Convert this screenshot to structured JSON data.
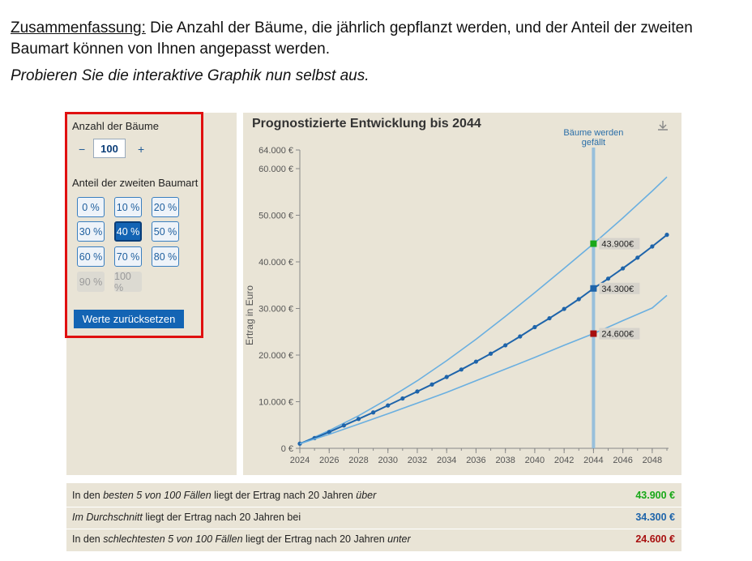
{
  "intro": {
    "heading": "Zusammenfassung:",
    "text": " Die Anzahl der Bäume, die jährlich gepflanzt werden, und der Anteil der zweiten Baumart können von Ihnen angepasst werden.",
    "line2": "Probieren Sie die interaktive Graphik nun selbst aus."
  },
  "controls": {
    "trees_label": "Anzahl der Bäume",
    "minus": "−",
    "plus": "+",
    "trees_value": "100",
    "share_label": "Anteil der zweiten Baumart",
    "share_options": [
      {
        "label": "0 %",
        "state": "normal"
      },
      {
        "label": "10 %",
        "state": "normal"
      },
      {
        "label": "20 %",
        "state": "normal"
      },
      {
        "label": "30 %",
        "state": "normal"
      },
      {
        "label": "40 %",
        "state": "active"
      },
      {
        "label": "50 %",
        "state": "normal"
      },
      {
        "label": "60 %",
        "state": "normal"
      },
      {
        "label": "70 %",
        "state": "normal"
      },
      {
        "label": "80 %",
        "state": "normal"
      },
      {
        "label": "90 %",
        "state": "disabled"
      },
      {
        "label": "100 %",
        "state": "disabled"
      }
    ],
    "reset_label": "Werte zurücksetzen"
  },
  "chart_data": {
    "type": "line",
    "title": "Prognostizierte Entwicklung bis 2044",
    "xlabel": "",
    "ylabel": "Ertrag in Euro",
    "xlim": [
      2024,
      2049
    ],
    "ylim": [
      0,
      64000
    ],
    "xticks": [
      2024,
      2026,
      2028,
      2030,
      2032,
      2034,
      2036,
      2038,
      2040,
      2042,
      2044,
      2046,
      2048
    ],
    "yticks": [
      0,
      10000,
      20000,
      30000,
      40000,
      50000,
      60000,
      64000
    ],
    "ytick_labels": [
      "0 €",
      "10.000 €",
      "20.000 €",
      "30.000 €",
      "40.000 €",
      "50.000 €",
      "60.000 €",
      "64.000 €"
    ],
    "cut_year": 2044,
    "cut_label_line1": "Bäume werden",
    "cut_label_line2": "gefällt",
    "series": [
      {
        "key": "best",
        "color": "#6aafe0",
        "x": [
          2024,
          2026,
          2028,
          2030,
          2032,
          2034,
          2036,
          2038,
          2040,
          2042,
          2044,
          2046,
          2048,
          2049
        ],
        "y": [
          1000,
          3800,
          7000,
          10600,
          14500,
          18800,
          23400,
          28300,
          33400,
          38600,
          43900,
          49400,
          55200,
          58200
        ]
      },
      {
        "key": "mean",
        "color": "#1e64aa",
        "x": [
          2024,
          2025,
          2026,
          2027,
          2028,
          2029,
          2030,
          2031,
          2032,
          2033,
          2034,
          2035,
          2036,
          2037,
          2038,
          2039,
          2040,
          2041,
          2042,
          2043,
          2044,
          2045,
          2046,
          2047,
          2048,
          2049
        ],
        "y": [
          1000,
          2200,
          3500,
          4900,
          6300,
          7700,
          9200,
          10700,
          12200,
          13700,
          15300,
          16900,
          18600,
          20300,
          22100,
          24000,
          26000,
          27900,
          29900,
          32000,
          34300,
          36400,
          38600,
          40900,
          43300,
          45800
        ]
      },
      {
        "key": "worst",
        "color": "#6aafe0",
        "x": [
          2024,
          2026,
          2028,
          2030,
          2032,
          2034,
          2036,
          2038,
          2040,
          2042,
          2044,
          2046,
          2048,
          2049
        ],
        "y": [
          1000,
          3000,
          5200,
          7400,
          9700,
          12000,
          14500,
          17000,
          19500,
          22100,
          24600,
          27400,
          30100,
          32800
        ]
      }
    ],
    "markers": [
      {
        "y": 43900,
        "label": "43.900€",
        "color": "#1aa81a"
      },
      {
        "y": 34300,
        "label": "34.300€",
        "color": "#1e64aa"
      },
      {
        "y": 24600,
        "label": "24.600€",
        "color": "#a80f0f"
      }
    ]
  },
  "summary": [
    {
      "parts": [
        {
          "t": "In den ",
          "i": false
        },
        {
          "t": "besten 5 von 100 Fällen",
          "i": true
        },
        {
          "t": " liegt der Ertrag nach 20 Jahren ",
          "i": false
        },
        {
          "t": "über",
          "i": true
        }
      ],
      "value": "43.900 €",
      "color": "#18a818"
    },
    {
      "parts": [
        {
          "t": "Im Durchschnitt",
          "i": true
        },
        {
          "t": " liegt der Ertrag nach 20 Jahren bei",
          "i": false
        }
      ],
      "value": "34.300 €",
      "color": "#1e64aa"
    },
    {
      "parts": [
        {
          "t": "In den ",
          "i": false
        },
        {
          "t": "schlechtesten 5 von 100 Fällen",
          "i": true
        },
        {
          "t": " liegt der Ertrag nach 20 Jahren ",
          "i": false
        },
        {
          "t": "unter",
          "i": true
        }
      ],
      "value": "24.600 €",
      "color": "#a80f0f"
    }
  ]
}
